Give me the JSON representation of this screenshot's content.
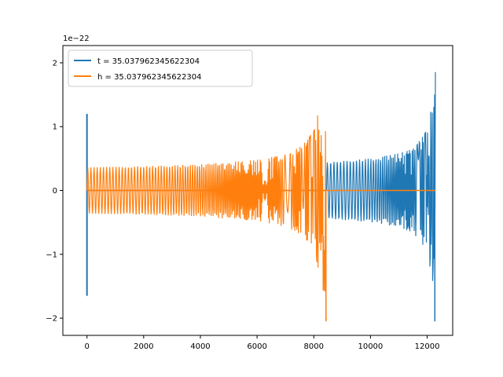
{
  "chart_data": {
    "type": "line",
    "title": "",
    "xlabel": "",
    "ylabel": "",
    "y_scale_label": "1e−22",
    "xlim": [
      -850,
      12900
    ],
    "ylim": [
      -2.27e-22,
      2.27e-22
    ],
    "x_ticks": [
      0,
      2000,
      4000,
      6000,
      8000,
      10000,
      12000
    ],
    "x_tick_labels": [
      "0",
      "2000",
      "4000",
      "6000",
      "8000",
      "10000",
      "12000"
    ],
    "y_ticks": [
      -2e-22,
      -1e-22,
      0,
      1e-22,
      2e-22
    ],
    "y_tick_labels": [
      "−2",
      "−1",
      "0",
      "1",
      "2"
    ],
    "grid": false,
    "legend_position": "top-left",
    "series": [
      {
        "name": "t = 35.037962345622304",
        "color": "#1f77b4",
        "x_start": 0,
        "x_end": 12290,
        "initial_spike": {
          "x": 0,
          "max": 1.2e-22,
          "min": -1.65e-22
        },
        "envelope_x": [
          100,
          2000,
          4000,
          6000,
          8000,
          8400,
          8450,
          10000,
          11000,
          11500,
          12000,
          12200,
          12290
        ],
        "envelope_amplitude": [
          0,
          0,
          0,
          0,
          0,
          0,
          4.4e-23,
          5e-23,
          5.8e-23,
          6.6e-23,
          9.5e-23,
          1.5e-22,
          2.07e-22
        ],
        "final_min": -2.05e-22
      },
      {
        "name": "h = 35.037962345622304",
        "color": "#ff7f0e",
        "x_start": 0,
        "x_end": 12290,
        "envelope_x": [
          0,
          2000,
          4000,
          6000,
          7000,
          7600,
          8000,
          8200,
          8350,
          8450
        ],
        "envelope_amplitude": [
          3.6e-23,
          3.8e-23,
          4.1e-23,
          4.8e-23,
          5.7e-23,
          7e-23,
          9.5e-23,
          1.3e-22,
          1.7e-22,
          2.07e-22
        ],
        "final_min": -2.05e-22,
        "zero_after_x": 8450
      }
    ]
  }
}
